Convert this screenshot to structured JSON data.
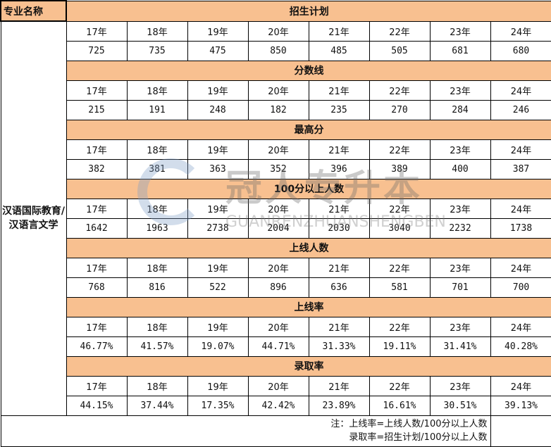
{
  "header": {
    "major_label": "专业名称"
  },
  "major": "汉语国际教育/汉语言文学",
  "years": [
    "17年",
    "18年",
    "19年",
    "20年",
    "21年",
    "22年",
    "23年",
    "24年"
  ],
  "sections": [
    {
      "title": "招生计划",
      "values": [
        "725",
        "735",
        "475",
        "850",
        "485",
        "505",
        "681",
        "680"
      ]
    },
    {
      "title": "分数线",
      "values": [
        "215",
        "191",
        "248",
        "182",
        "235",
        "270",
        "284",
        "246"
      ]
    },
    {
      "title": "最高分",
      "values": [
        "382",
        "381",
        "363",
        "352",
        "396",
        "389",
        "400",
        "387"
      ]
    },
    {
      "title": "100分以上人数",
      "values": [
        "1642",
        "1963",
        "2738",
        "2004",
        "2030",
        "3040",
        "2232",
        "1738"
      ]
    },
    {
      "title": "上线人数",
      "values": [
        "768",
        "816",
        "522",
        "896",
        "636",
        "581",
        "701",
        "700"
      ]
    },
    {
      "title": "上线率",
      "values": [
        "46.77%",
        "41.57%",
        "19.07%",
        "44.71%",
        "31.33%",
        "19.11%",
        "31.41%",
        "40.28%"
      ]
    },
    {
      "title": "录取率",
      "values": [
        "44.15%",
        "37.44%",
        "17.35%",
        "42.42%",
        "23.89%",
        "16.61%",
        "30.51%",
        "39.13%"
      ]
    }
  ],
  "notes": [
    "注：上线率=上线人数/100分以上人数",
    "录取率=招生计划/100分以上人数"
  ],
  "watermark": {
    "cn": "冠人专升本",
    "en": "GUANRENZHUANSHENGBEN"
  },
  "colors": {
    "header_bg": "#f8c090"
  }
}
